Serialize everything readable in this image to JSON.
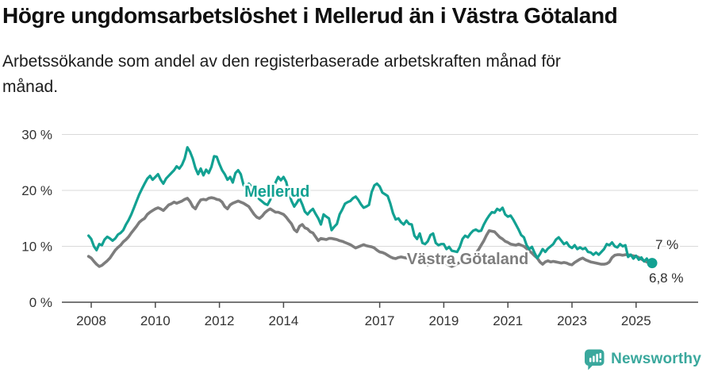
{
  "header": {
    "title": "Högre ungdomsarbetslöshet i Mellerud än i Västra Götaland",
    "subtitle_line1": "Arbetssökande som andel av den registerbaserade arbetskraften månad för",
    "subtitle_line2": "månad."
  },
  "footer": {
    "brand": "Newsworthy",
    "brand_color": "#3aa89d"
  },
  "chart_data": {
    "type": "line",
    "title": "Högre ungdomsarbetslöshet i Mellerud än i Västra Götaland",
    "subtitle": "Arbetssökande som andel av den registerbaserade arbetskraften månad för månad.",
    "grid": true,
    "legend_position": "inline-labels",
    "colors": {
      "teal": "#12a192",
      "gray": "#7d7d7d",
      "grid": "#d9d9d9",
      "axis": "#4a4a4a",
      "dark": "#2e2e2e"
    },
    "x_axis": {
      "unit": "year",
      "range": [
        2007.9,
        2026.0
      ],
      "ticks": [
        {
          "year": 2008,
          "label": "2008"
        },
        {
          "year": 2010,
          "label": "2010"
        },
        {
          "year": 2012,
          "label": "2012"
        },
        {
          "year": 2014,
          "label": "2014"
        },
        {
          "year": 2017,
          "label": "2017"
        },
        {
          "year": 2019,
          "label": "2019"
        },
        {
          "year": 2021,
          "label": "2021"
        },
        {
          "year": 2023,
          "label": "2023"
        },
        {
          "year": 2025,
          "label": "2025"
        }
      ]
    },
    "y_axis": {
      "unit": "%",
      "range": [
        0,
        32
      ],
      "ticks": [
        {
          "value": 0,
          "label": "0 %"
        },
        {
          "value": 10,
          "label": "10 %"
        },
        {
          "value": 20,
          "label": "20 %"
        },
        {
          "value": 30,
          "label": "30 %"
        }
      ]
    },
    "annotations": [
      {
        "text": "Mellerud",
        "year": 2012.78,
        "value": 18.85,
        "color": "teal",
        "bold": true,
        "size": 20
      },
      {
        "text": "Västra Götaland",
        "year": 2017.85,
        "value": 6.8,
        "color": "gray",
        "bold": true,
        "size": 20
      },
      {
        "text": "7 %",
        "year": 2025.6,
        "value": 9.5,
        "color": "dark",
        "bold": false,
        "size": 17
      },
      {
        "text": "6,8 %",
        "year": 2025.4,
        "value": 3.55,
        "color": "dark",
        "bold": false,
        "size": 17
      }
    ],
    "series": [
      {
        "name": "Mellerud",
        "color": "#12a192",
        "width": 3.2,
        "end_dot": true,
        "latest_value_label": "7 %",
        "start_year": 2007.917,
        "step_years": 0.08333,
        "values": [
          11.9,
          11.3,
          10.0,
          9.3,
          10.4,
          10.2,
          11.2,
          11.7,
          11.4,
          11.0,
          11.4,
          12.1,
          12.4,
          12.9,
          13.9,
          14.7,
          15.7,
          16.9,
          18.1,
          19.3,
          20.3,
          21.2,
          22.1,
          22.6,
          21.9,
          22.4,
          22.9,
          21.9,
          21.2,
          22.1,
          22.6,
          23.1,
          23.6,
          24.3,
          23.9,
          24.6,
          25.7,
          27.7,
          26.9,
          25.7,
          24.0,
          22.9,
          23.9,
          22.7,
          23.7,
          23.1,
          24.2,
          26.1,
          26.0,
          24.7,
          23.6,
          22.9,
          21.9,
          22.4,
          21.4,
          23.1,
          23.6,
          22.9,
          21.0,
          20.4,
          21.2,
          20.7,
          19.7,
          19.0,
          18.4,
          18.0,
          17.6,
          17.4,
          18.3,
          19.8,
          21.4,
          22.4,
          21.8,
          22.4,
          21.5,
          19.5,
          18.1,
          17.1,
          17.8,
          18.6,
          17.5,
          16.2,
          15.7,
          16.3,
          16.7,
          15.8,
          15.0,
          13.9,
          15.7,
          15.3,
          15.0,
          12.9,
          13.5,
          14.0,
          15.7,
          16.6,
          17.6,
          17.9,
          18.1,
          18.6,
          18.9,
          18.3,
          17.5,
          16.9,
          17.1,
          17.4,
          19.7,
          20.9,
          21.2,
          20.7,
          19.6,
          19.3,
          19.0,
          17.6,
          15.9,
          14.8,
          15.0,
          14.3,
          13.9,
          14.6,
          14.0,
          13.9,
          11.9,
          11.3,
          12.3,
          10.6,
          10.4,
          10.9,
          12.0,
          12.3,
          10.6,
          10.2,
          10.4,
          10.4,
          9.5,
          9.9,
          9.2,
          9.1,
          9.0,
          9.9,
          11.3,
          11.9,
          11.6,
          12.3,
          12.8,
          13.0,
          12.7,
          12.8,
          13.9,
          14.8,
          15.5,
          16.1,
          16.0,
          16.7,
          16.4,
          16.9,
          15.7,
          15.3,
          15.5,
          14.8,
          13.9,
          13.0,
          12.0,
          11.6,
          10.2,
          9.5,
          9.9,
          8.8,
          7.9,
          8.6,
          9.5,
          9.0,
          9.6,
          10.0,
          10.4,
          11.2,
          11.6,
          11.0,
          10.4,
          10.7,
          10.0,
          9.7,
          10.2,
          9.5,
          9.8,
          9.5,
          9.7,
          9.0,
          8.9,
          8.5,
          8.9,
          8.5,
          9.0,
          9.5,
          10.4,
          10.2,
          10.7,
          10.0,
          9.8,
          10.4,
          10.0,
          10.2,
          8.1,
          8.5,
          7.8,
          8.3,
          7.6,
          8.0,
          7.3,
          7.8,
          6.9,
          7.0
        ]
      },
      {
        "name": "Västra Götaland",
        "color": "#7d7d7d",
        "width": 3.6,
        "end_dot": false,
        "latest_value_label": "6,8 %",
        "start_year": 2007.917,
        "step_years": 0.08333,
        "values": [
          8.2,
          7.9,
          7.3,
          6.8,
          6.4,
          6.6,
          7.0,
          7.4,
          7.9,
          8.6,
          9.3,
          9.8,
          10.2,
          10.8,
          11.2,
          11.7,
          12.4,
          13.0,
          13.6,
          14.3,
          14.7,
          15.0,
          15.7,
          16.1,
          16.4,
          16.7,
          16.9,
          16.7,
          16.4,
          16.9,
          17.4,
          17.6,
          17.9,
          17.7,
          17.9,
          18.1,
          18.4,
          18.6,
          18.0,
          17.1,
          16.7,
          17.6,
          18.3,
          18.4,
          18.3,
          18.6,
          18.7,
          18.6,
          18.4,
          18.3,
          17.9,
          17.1,
          16.7,
          17.4,
          17.7,
          17.9,
          18.1,
          17.9,
          17.7,
          17.4,
          17.1,
          16.4,
          15.7,
          15.2,
          15.0,
          15.4,
          16.0,
          16.4,
          16.7,
          16.4,
          16.1,
          16.1,
          15.9,
          15.7,
          15.2,
          14.6,
          14.0,
          13.0,
          12.6,
          13.6,
          13.9,
          13.3,
          13.1,
          12.6,
          12.4,
          11.7,
          11.0,
          11.4,
          11.3,
          11.2,
          11.4,
          11.4,
          11.3,
          11.2,
          11.0,
          10.9,
          10.7,
          10.5,
          10.3,
          10.0,
          9.7,
          9.9,
          10.1,
          10.3,
          10.1,
          10.0,
          9.9,
          9.7,
          9.3,
          9.0,
          8.9,
          8.7,
          8.4,
          8.1,
          7.9,
          7.8,
          8.0,
          8.1,
          8.0,
          7.9,
          7.9,
          7.8,
          7.6,
          7.5,
          7.4,
          7.1,
          6.9,
          6.7,
          7.0,
          7.2,
          7.4,
          7.2,
          7.1,
          7.1,
          6.9,
          6.6,
          6.4,
          6.6,
          6.9,
          7.1,
          7.4,
          7.6,
          7.7,
          7.8,
          8.2,
          8.8,
          9.4,
          10.2,
          11.0,
          12.0,
          12.8,
          12.7,
          12.6,
          12.1,
          11.6,
          11.3,
          10.9,
          10.7,
          10.4,
          10.3,
          10.2,
          10.4,
          10.2,
          10.0,
          9.6,
          9.2,
          8.8,
          8.3,
          7.9,
          7.2,
          6.8,
          7.2,
          7.4,
          7.2,
          7.3,
          7.2,
          7.1,
          7.0,
          7.1,
          7.0,
          6.8,
          6.7,
          7.1,
          7.4,
          7.7,
          7.9,
          7.6,
          7.4,
          7.2,
          7.1,
          7.0,
          6.9,
          6.8,
          6.8,
          6.9,
          7.2,
          8.0,
          8.4,
          8.5,
          8.5,
          8.4,
          8.5,
          8.5,
          8.4,
          8.3,
          8.2,
          8.0,
          7.7,
          7.4,
          7.2,
          7.0,
          6.8
        ]
      }
    ]
  }
}
